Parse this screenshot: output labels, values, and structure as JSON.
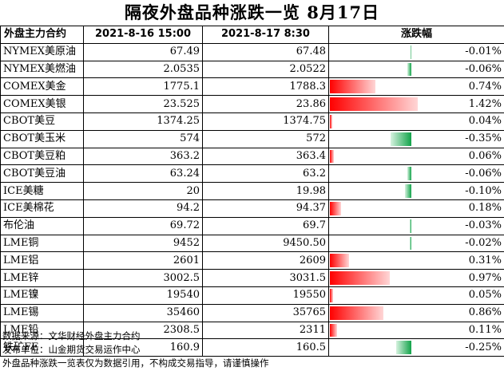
{
  "title": "隔夜外盘品种涨跌一览 8月17日",
  "headers": {
    "name": "外盘主力合约",
    "prev": "2021-8-16 15:00",
    "curr": "2021-8-17 8:30",
    "change": "涨跌幅"
  },
  "colors": {
    "up": "#ff0000",
    "down": "#12a34a"
  },
  "rows": [
    {
      "name": "NYMEX美原油",
      "prev": "67.49",
      "curr": "67.48",
      "change": "-0.01%",
      "pct": -0.01
    },
    {
      "name": "NYMEX美燃油",
      "prev": "2.0535",
      "curr": "2.0522",
      "change": "-0.06%",
      "pct": -0.06
    },
    {
      "name": "COMEX美金",
      "prev": "1775.1",
      "curr": "1788.3",
      "change": "0.74%",
      "pct": 0.74
    },
    {
      "name": "COMEX美银",
      "prev": "23.525",
      "curr": "23.86",
      "change": "1.42%",
      "pct": 1.42
    },
    {
      "name": "CBOT美豆",
      "prev": "1374.25",
      "curr": "1374.75",
      "change": "0.04%",
      "pct": 0.04
    },
    {
      "name": "CBOT美玉米",
      "prev": "574",
      "curr": "572",
      "change": "-0.35%",
      "pct": -0.35
    },
    {
      "name": "CBOT美豆粕",
      "prev": "363.2",
      "curr": "363.4",
      "change": "0.06%",
      "pct": 0.06
    },
    {
      "name": "CBOT美豆油",
      "prev": "63.24",
      "curr": "63.2",
      "change": "-0.06%",
      "pct": -0.06
    },
    {
      "name": "ICE美糖",
      "prev": "20",
      "curr": "19.98",
      "change": "-0.10%",
      "pct": -0.1
    },
    {
      "name": "ICE美棉花",
      "prev": "94.2",
      "curr": "94.37",
      "change": "0.18%",
      "pct": 0.18
    },
    {
      "name": "布伦油",
      "prev": "69.72",
      "curr": "69.7",
      "change": "-0.03%",
      "pct": -0.03
    },
    {
      "name": "LME铜",
      "prev": "9452",
      "curr": "9450.50",
      "change": "-0.02%",
      "pct": -0.02
    },
    {
      "name": "LME铝",
      "prev": "2601",
      "curr": "2609",
      "change": "0.31%",
      "pct": 0.31
    },
    {
      "name": "LME锌",
      "prev": "3002.5",
      "curr": "3031.5",
      "change": "0.97%",
      "pct": 0.97
    },
    {
      "name": "LME镍",
      "prev": "19540",
      "curr": "19550",
      "change": "0.05%",
      "pct": 0.05
    },
    {
      "name": "LME锡",
      "prev": "35460",
      "curr": "35765",
      "change": "0.86%",
      "pct": 0.86
    },
    {
      "name": "LME铅",
      "prev": "2308.5",
      "curr": "2311",
      "change": "0.11%",
      "pct": 0.11
    },
    {
      "name": "铁矿FE",
      "prev": "160.9",
      "curr": "160.5",
      "change": "-0.25%",
      "pct": -0.25
    }
  ],
  "footer": {
    "source": "数据来源：文华财经外盘主力合约",
    "publisher": "发布单位：山金期货交易运作中心",
    "disclaimer": "外盘品种涨跌一览表仅为数据引用，不构成交易指导，请谨慎操作"
  }
}
